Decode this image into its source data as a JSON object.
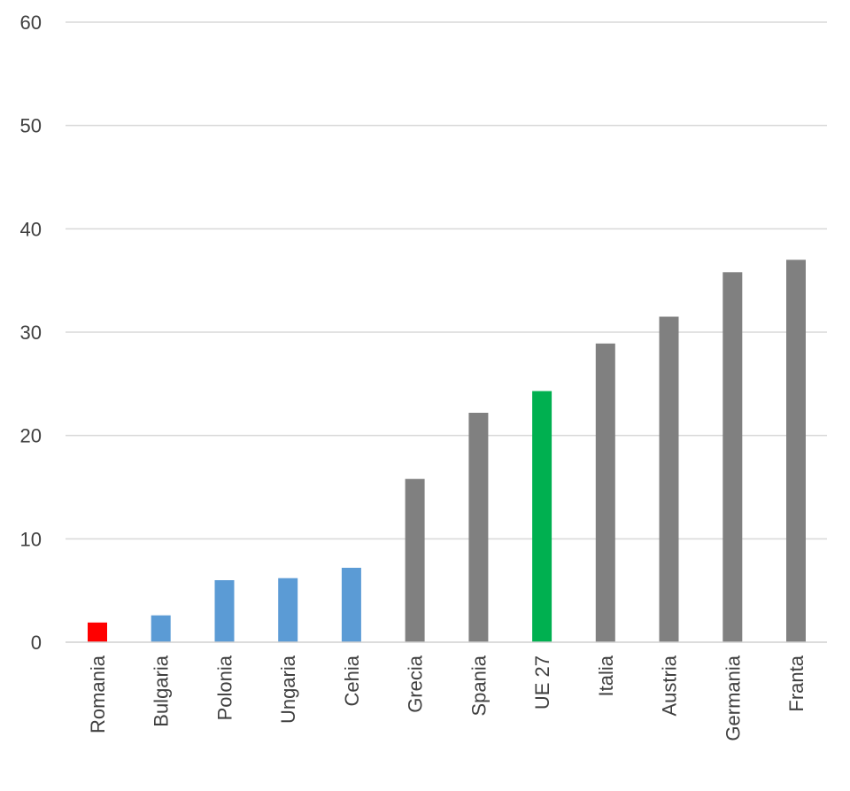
{
  "chart_data": {
    "type": "bar",
    "title": "",
    "xlabel": "",
    "ylabel": "",
    "ylim": [
      0,
      60
    ],
    "yticks": [
      0,
      10,
      20,
      30,
      40,
      50,
      60
    ],
    "grid": true,
    "legend": "none",
    "categories": [
      "Romania",
      "Bulgaria",
      "Polonia",
      "Ungaria",
      "Cehia",
      "Grecia",
      "Spania",
      "UE 27",
      "Italia",
      "Austria",
      "Germania",
      "Franta"
    ],
    "values": [
      1.9,
      2.6,
      6.0,
      6.2,
      7.2,
      15.8,
      22.2,
      24.3,
      28.9,
      31.5,
      35.8,
      37.0
    ],
    "bar_colors": [
      "#ff0000",
      "#5b9bd5",
      "#5b9bd5",
      "#5b9bd5",
      "#5b9bd5",
      "#808080",
      "#808080",
      "#00b050",
      "#808080",
      "#808080",
      "#808080",
      "#808080"
    ]
  }
}
